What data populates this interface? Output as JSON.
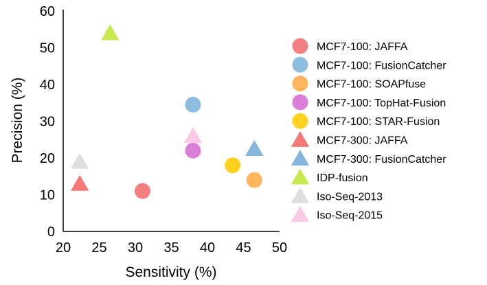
{
  "chart_data": {
    "type": "scatter",
    "title": "",
    "xlabel": "Sensitivity (%)",
    "ylabel": "Precision (%)",
    "xlim": [
      20,
      50
    ],
    "ylim": [
      0,
      60
    ],
    "xticks": [
      20,
      25,
      30,
      35,
      40,
      45,
      50
    ],
    "yticks": [
      0,
      10,
      20,
      30,
      40,
      50,
      60
    ],
    "grid": false,
    "legend_position": "right",
    "series": [
      {
        "name": "MCF7-100: JAFFA",
        "marker": "circle",
        "color": "#f28080",
        "points": [
          {
            "x": 31,
            "y": 11
          }
        ]
      },
      {
        "name": "MCF7-100: FusionCatcher",
        "marker": "circle",
        "color": "#8fbde0",
        "points": [
          {
            "x": 38,
            "y": 34.5
          }
        ]
      },
      {
        "name": "MCF7-100: SOAPfuse",
        "marker": "circle",
        "color": "#fdb65e",
        "points": [
          {
            "x": 46.5,
            "y": 14
          }
        ]
      },
      {
        "name": "MCF7-100: TopHat-Fusion",
        "marker": "circle",
        "color": "#db7fd9",
        "points": [
          {
            "x": 38,
            "y": 22
          }
        ]
      },
      {
        "name": "MCF7-100: STAR-Fusion",
        "marker": "circle",
        "color": "#ffd21f",
        "points": [
          {
            "x": 43.5,
            "y": 18
          }
        ]
      },
      {
        "name": "MCF7-300: JAFFA",
        "marker": "triangle",
        "color": "#f47a7a",
        "points": [
          {
            "x": 22.3,
            "y": 13
          }
        ]
      },
      {
        "name": "MCF7-300: FusionCatcher",
        "marker": "triangle",
        "color": "#85b6db",
        "points": [
          {
            "x": 46.5,
            "y": 22.5
          }
        ]
      },
      {
        "name": "IDP-fusion",
        "marker": "triangle",
        "color": "#c8ea4e",
        "points": [
          {
            "x": 26.5,
            "y": 54
          }
        ]
      },
      {
        "name": "Iso-Seq-2013",
        "marker": "triangle",
        "color": "#dedede",
        "points": [
          {
            "x": 22.3,
            "y": 19
          }
        ]
      },
      {
        "name": "Iso-Seq-2015",
        "marker": "triangle",
        "color": "#fcc9e6",
        "points": [
          {
            "x": 38,
            "y": 26
          }
        ]
      }
    ]
  }
}
